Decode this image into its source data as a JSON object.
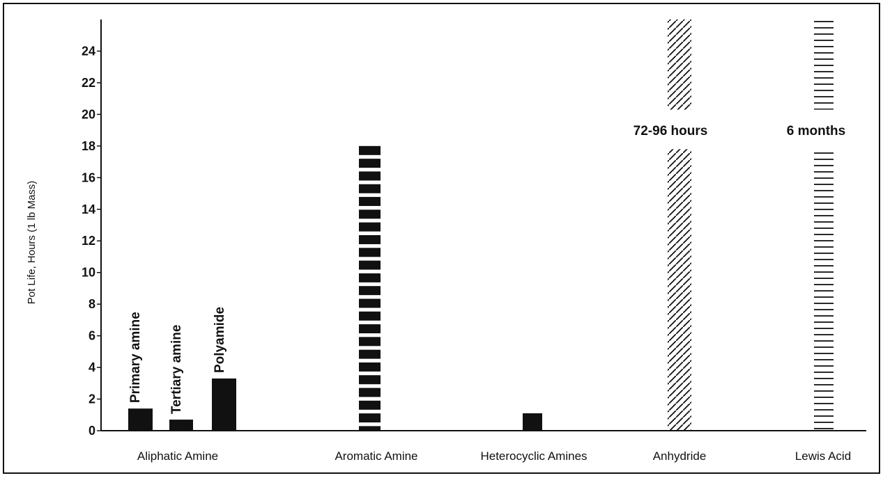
{
  "chart_data": {
    "type": "bar",
    "ylabel": "Pot Life, Hours (1 lb Mass)",
    "ylim": [
      0,
      26
    ],
    "yticks": [
      0,
      2,
      4,
      6,
      8,
      10,
      12,
      14,
      16,
      18,
      20,
      22,
      24
    ],
    "grid": false,
    "categories": [
      "Aliphatic Amine",
      "Aromatic Amine",
      "Heterocyclic Amines",
      "Anhydride",
      "Lewis Acid"
    ],
    "bars": [
      {
        "category": "Aliphatic Amine",
        "label": "Primary amine",
        "value": 1.4,
        "pattern": "solid"
      },
      {
        "category": "Aliphatic Amine",
        "label": "Tertiary amine",
        "value": 0.7,
        "pattern": "solid"
      },
      {
        "category": "Aliphatic Amine",
        "label": "Polyamide",
        "value": 3.3,
        "pattern": "solid"
      },
      {
        "category": "Aromatic Amine",
        "label": "",
        "value": 18,
        "pattern": "dashed"
      },
      {
        "category": "Heterocyclic Amines",
        "label": "",
        "value": 1.1,
        "pattern": "solid"
      },
      {
        "category": "Anhydride",
        "label": "72-96 hours",
        "value": 26,
        "pattern": "diagonal-hatch",
        "broken": true
      },
      {
        "category": "Lewis Acid",
        "label": "6 months",
        "value": 26,
        "pattern": "horizontal-hatch",
        "broken": true
      }
    ]
  }
}
